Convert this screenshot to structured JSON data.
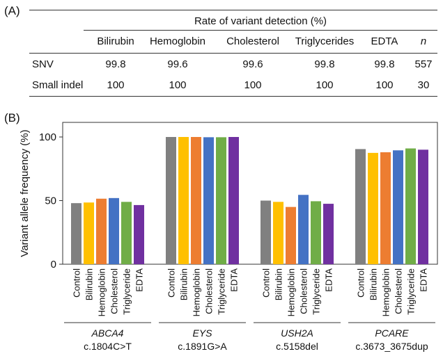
{
  "panel_a_label": "(A)",
  "panel_b_label": "(B)",
  "table": {
    "header_group": "Rate of variant detection (%)",
    "columns": [
      "Bilirubin",
      "Hemoglobin",
      "Cholesterol",
      "Triglycerides",
      "EDTA",
      "n"
    ],
    "rows": [
      {
        "label": "SNV",
        "values": [
          "99.8",
          "99.6",
          "99.6",
          "99.8",
          "99.8",
          "557"
        ]
      },
      {
        "label": "Small indel",
        "values": [
          "100",
          "100",
          "100",
          "100",
          "100",
          "30"
        ]
      }
    ]
  },
  "chart_data": {
    "type": "bar",
    "title": "",
    "xlabel": "",
    "ylabel": "Variant allele frequency (%)",
    "ylim": [
      0,
      110
    ],
    "yticks": [
      "0",
      "50",
      "100"
    ],
    "grid": false,
    "conditions": [
      "Control",
      "Bilirubin",
      "Hemoglobin",
      "Cholesterol",
      "Triglyceride",
      "EDTA"
    ],
    "colors": {
      "Control": "#808080",
      "Bilirubin": "#ffc000",
      "Hemoglobin": "#ed7d31",
      "Cholesterol": "#4472c4",
      "Triglyceride": "#70ad47",
      "EDTA": "#7030a0"
    },
    "groups": [
      {
        "gene": "ABCA4",
        "variant": "c.1804C>T",
        "values": [
          48,
          48.5,
          51.5,
          52,
          49,
          46.5
        ]
      },
      {
        "gene": "EYS",
        "variant": "c.1891G>A",
        "values": [
          100,
          100,
          100,
          99.8,
          99.8,
          100
        ]
      },
      {
        "gene": "USH2A",
        "variant": "c.5158del",
        "values": [
          50,
          49,
          45,
          54.5,
          49.5,
          47.5
        ]
      },
      {
        "gene": "PCARE",
        "variant": "c.3673_3675dup",
        "values": [
          90.5,
          87.5,
          88,
          89.5,
          91,
          90
        ]
      }
    ]
  }
}
